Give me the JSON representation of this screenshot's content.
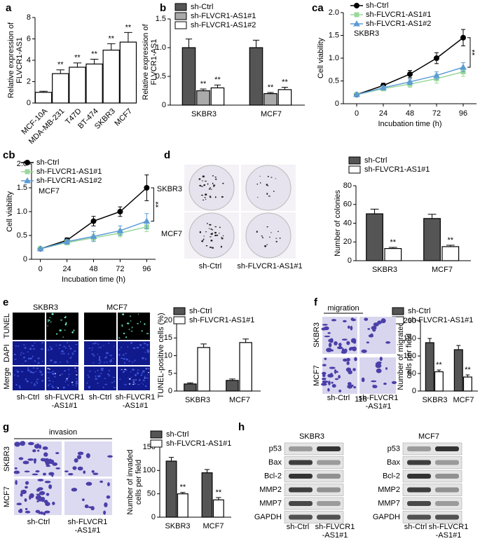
{
  "chart_data": [
    {
      "type": "bar",
      "label": "a",
      "ylabel": [
        "Relative expression of",
        "FLVCR1-AS1"
      ],
      "categories": [
        "MCF-10A",
        "MDA-MB-231",
        "T47D",
        "BT-474",
        "SKBR3",
        "MCF7"
      ],
      "values": [
        1.0,
        2.75,
        3.35,
        3.65,
        4.95,
        5.7
      ],
      "errors": [
        0.1,
        0.35,
        0.4,
        0.45,
        0.6,
        0.9
      ],
      "significance": [
        null,
        "**",
        "**",
        "**",
        "**",
        "**"
      ],
      "color": "#ffffff",
      "ylim": [
        0,
        8
      ],
      "yticks": [
        0,
        2,
        4,
        6,
        8
      ]
    },
    {
      "type": "bar",
      "label": "b",
      "ylabel": [
        "Relative expression of",
        "FLVCR1-AS1"
      ],
      "categories": [
        "SKBR3",
        "MCF7"
      ],
      "series": [
        {
          "name": "sh-Ctrl",
          "color": "#555555",
          "values": [
            1.0,
            1.0
          ],
          "errors": [
            0.15,
            0.13
          ],
          "significance": [
            null,
            null
          ]
        },
        {
          "name": "sh-FLVCR1-AS1#1",
          "color": "#aaaaaa",
          "values": [
            0.25,
            0.2
          ],
          "errors": [
            0.03,
            0.02
          ],
          "significance": [
            "**",
            "**"
          ]
        },
        {
          "name": "sh-FLVCR1-AS1#2",
          "color": "#ffffff",
          "values": [
            0.3,
            0.27
          ],
          "errors": [
            0.05,
            0.04
          ],
          "significance": [
            "**",
            "**"
          ]
        }
      ],
      "ylim": [
        0,
        1.5
      ],
      "yticks": [
        0,
        0.5,
        {
          "value": 1,
          "label": "1.0"
        },
        1.5
      ]
    },
    {
      "type": "line",
      "label": "ca",
      "note": "SKBR3",
      "annotation": "**",
      "xlabel": "Incubation time (h)",
      "ylabel": [
        "Cell viability"
      ],
      "x": [
        0,
        24,
        48,
        72,
        96
      ],
      "series": [
        {
          "name": "sh-Ctrl",
          "color": "#000000",
          "marker": "circle",
          "values": [
            0.2,
            0.4,
            0.65,
            1.0,
            1.45
          ],
          "errors": [
            0.02,
            0.05,
            0.08,
            0.12,
            0.18
          ]
        },
        {
          "name": "sh-FLVCR1-AS1#1",
          "color": "#9ad89a",
          "marker": "square",
          "values": [
            0.2,
            0.33,
            0.43,
            0.55,
            0.7
          ],
          "errors": [
            0.02,
            0.05,
            0.07,
            0.1,
            0.1
          ]
        },
        {
          "name": "sh-FLVCR1-AS1#2",
          "color": "#5b9bd5",
          "marker": "triangle",
          "values": [
            0.2,
            0.35,
            0.48,
            0.62,
            0.8
          ],
          "errors": [
            0.02,
            0.04,
            0.06,
            0.08,
            0.1
          ]
        }
      ],
      "xlim": [
        -12,
        108
      ],
      "xticks": [
        0,
        24,
        48,
        72,
        96
      ],
      "ylim": [
        0,
        2
      ],
      "yticks": [
        0,
        0.5,
        {
          "value": 1,
          "label": "1.0"
        },
        1.5,
        {
          "value": 2,
          "label": "2.0"
        }
      ]
    },
    {
      "type": "line",
      "label": "cb",
      "note": "MCF7",
      "annotation": "**",
      "xlabel": "Incubation time (h)",
      "ylabel": [
        "Cell viability"
      ],
      "x": [
        0,
        24,
        48,
        72,
        96
      ],
      "series": [
        {
          "name": "sh-Ctrl",
          "color": "#000000",
          "marker": "circle",
          "values": [
            0.22,
            0.4,
            0.8,
            1.0,
            1.5
          ],
          "errors": [
            0.02,
            0.05,
            0.1,
            0.1,
            0.27
          ]
        },
        {
          "name": "sh-FLVCR1-AS1#1",
          "color": "#9ad89a",
          "marker": "square",
          "values": [
            0.22,
            0.35,
            0.45,
            0.55,
            0.68
          ],
          "errors": [
            0.02,
            0.05,
            0.08,
            0.08,
            0.1
          ]
        },
        {
          "name": "sh-FLVCR1-AS1#2",
          "color": "#5b9bd5",
          "marker": "triangle",
          "values": [
            0.22,
            0.37,
            0.48,
            0.6,
            0.8
          ],
          "errors": [
            0.02,
            0.05,
            0.1,
            0.1,
            0.16
          ]
        }
      ],
      "xlim": [
        -8,
        104
      ],
      "xticks": [
        0,
        24,
        48,
        72,
        96
      ],
      "ylim": [
        0,
        2
      ],
      "yticks": [
        0,
        0.5,
        {
          "value": 1,
          "label": "1.0"
        },
        1.5,
        {
          "value": 2,
          "label": "2.0"
        }
      ]
    },
    {
      "type": "bar",
      "label": "d",
      "ylabel": [
        "Number of colonies"
      ],
      "categories": [
        "SKBR3",
        "MCF7"
      ],
      "series": [
        {
          "name": "sh-Ctrl",
          "color": "#555555",
          "values": [
            50,
            45
          ],
          "errors": [
            5,
            4.5
          ],
          "significance": [
            null,
            null
          ]
        },
        {
          "name": "sh-FLVCR1-AS1#1",
          "color": "#ffffff",
          "values": [
            13,
            15
          ],
          "errors": [
            1.2,
            1.5
          ],
          "significance": [
            "**",
            "**"
          ]
        }
      ],
      "ylim": [
        0,
        80
      ],
      "yticks": [
        0,
        20,
        40,
        60,
        80
      ]
    },
    {
      "type": "bar",
      "label": "e",
      "ylabel": [
        "TUNEL-positive cells (%)"
      ],
      "categories": [
        "SKBR3",
        "MCF7"
      ],
      "series": [
        {
          "name": "sh-Ctrl",
          "color": "#555555",
          "values": [
            2,
            3
          ],
          "errors": [
            0.3,
            0.4
          ],
          "significance": [
            null,
            null
          ]
        },
        {
          "name": "sh-FLVCR1-AS1#1",
          "color": "#ffffff",
          "values": [
            12.3,
            13.7
          ],
          "errors": [
            1,
            1
          ]
        },
        {
          "name": null
        }
      ],
      "ylim": [
        0,
        20
      ],
      "yticks": [
        0,
        5,
        10,
        15,
        20
      ]
    },
    {
      "type": "bar",
      "label": "f",
      "ylabel": [
        "Number of migrated",
        "cells per field"
      ],
      "categories": [
        "SKBR3",
        "MCF7"
      ],
      "series": [
        {
          "name": "sh-Ctrl",
          "color": "#555555",
          "values": [
            138,
            118
          ],
          "errors": [
            12,
            12
          ],
          "significance": [
            null,
            null
          ]
        },
        {
          "name": "sh-FLVCR1-AS1#1",
          "color": "#ffffff",
          "values": [
            55,
            40
          ],
          "errors": [
            5,
            6
          ],
          "significance": [
            "**",
            "**"
          ]
        }
      ],
      "ylim": [
        0,
        200
      ],
      "yticks": [
        0,
        50,
        100,
        150,
        200
      ]
    },
    {
      "type": "bar",
      "label": "g",
      "ylabel": [
        "Number of invaded",
        "cells per field"
      ],
      "categories": [
        "SKBR3",
        "MCF7"
      ],
      "series": [
        {
          "name": "sh-Ctrl",
          "color": "#555555",
          "values": [
            120,
            95
          ],
          "errors": [
            8,
            7
          ],
          "significance": [
            null,
            null
          ]
        },
        {
          "name": "sh-FLVCR1-AS1#1",
          "color": "#ffffff",
          "values": [
            50,
            37
          ],
          "errors": [
            3,
            5
          ],
          "significance": [
            "**",
            "**"
          ]
        }
      ],
      "ylim": [
        0,
        150
      ],
      "yticks": [
        0,
        50,
        100,
        150
      ]
    }
  ],
  "panels": {
    "d": {
      "rows": [
        "SKBR3",
        "MCF7"
      ],
      "cols": [
        [
          "sh-Ctrl"
        ],
        [
          "sh-FLVCR1-AS1#1"
        ]
      ]
    },
    "e": {
      "lines": [
        "SKBR3",
        "MCF7"
      ],
      "rows": [
        "TUNEL",
        "DAPI",
        "Merge"
      ],
      "cols": [
        [
          "sh-Ctrl"
        ],
        [
          "sh-FLVCR1",
          "-AS1#1"
        ],
        [
          "sh-Ctrl"
        ],
        [
          "sh-FLVCR1",
          "-AS1#1"
        ]
      ]
    },
    "f": {
      "title": "migration",
      "rows": [
        "SKBR3",
        "MCF7"
      ],
      "cols": [
        [
          "sh-Ctrl"
        ],
        [
          "sh-FLVCR1",
          "-AS1#1"
        ]
      ],
      "stray": "118"
    },
    "g": {
      "title": "invasion",
      "rows": [
        "SKBR3",
        "MCF7"
      ],
      "cols": [
        [
          "sh-Ctrl"
        ],
        [
          "sh-FLVCR1",
          "-AS1#1"
        ]
      ]
    },
    "h": {
      "label": "h",
      "lines": [
        "SKBR3",
        "MCF7"
      ],
      "proteins": [
        "p53",
        "Bax",
        "Bcl-2",
        "MMP2",
        "MMP7",
        "GAPDH"
      ],
      "cols": [
        [
          "sh-Ctrl"
        ],
        [
          "sh-FLVCR1",
          "-AS1#1"
        ]
      ]
    }
  }
}
